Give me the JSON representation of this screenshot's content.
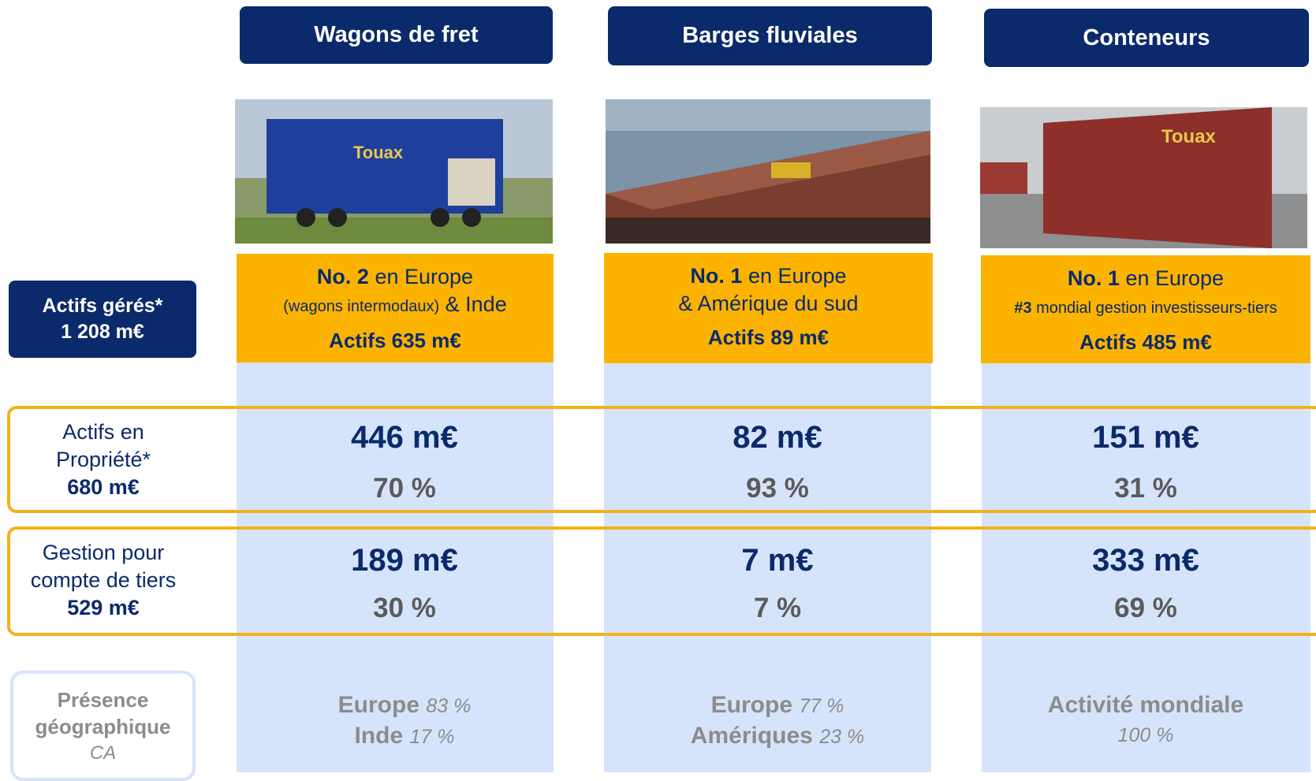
{
  "row_labels": {
    "managed_total": {
      "title": "Actifs gérés*",
      "value": "1 208 m€"
    },
    "owned": {
      "line1": "Actifs en",
      "line2": "Propriété*",
      "value": "680 m€"
    },
    "third_party": {
      "line1": "Gestion pour",
      "line2": "compte de tiers",
      "value": "529 m€"
    },
    "geography": {
      "line1": "Présence",
      "line2": "géographique",
      "note": "CA"
    }
  },
  "columns": [
    {
      "title": "Wagons de fret",
      "rank_bold": "No. 2",
      "rank_text": "en Europe",
      "rank_small": "(wagons intermodaux)",
      "rank_line2": "& Inde",
      "assets": "Actifs 635 m€",
      "owned": "446 m€",
      "owned_pct": "70 %",
      "managed": "189 m€",
      "managed_pct": "30 %",
      "geo": [
        {
          "region": "Europe",
          "share": "83 %"
        },
        {
          "region": "Inde",
          "share": "17 %"
        }
      ]
    },
    {
      "title": "Barges fluviales",
      "rank_bold": "No. 1",
      "rank_text": "en Europe",
      "rank_line2": "& Amérique du sud",
      "assets": "Actifs 89 m€",
      "owned": "82 m€",
      "owned_pct": "93 %",
      "managed": "7 m€",
      "managed_pct": "7 %",
      "geo": [
        {
          "region": "Europe",
          "share": "77 %"
        },
        {
          "region": "Amériques",
          "share": "23 %"
        }
      ]
    },
    {
      "title": "Conteneurs",
      "rank_bold": "No. 1",
      "rank_text": "en Europe",
      "rank_small_bold": "#3",
      "rank_small": "mondial gestion investisseurs-tiers",
      "assets": "Actifs 485 m€",
      "owned": "151 m€",
      "owned_pct": "31 %",
      "managed": "333 m€",
      "managed_pct": "69 %",
      "geo": [
        {
          "region": "Activité mondiale",
          "share": "100 %"
        }
      ]
    }
  ]
}
